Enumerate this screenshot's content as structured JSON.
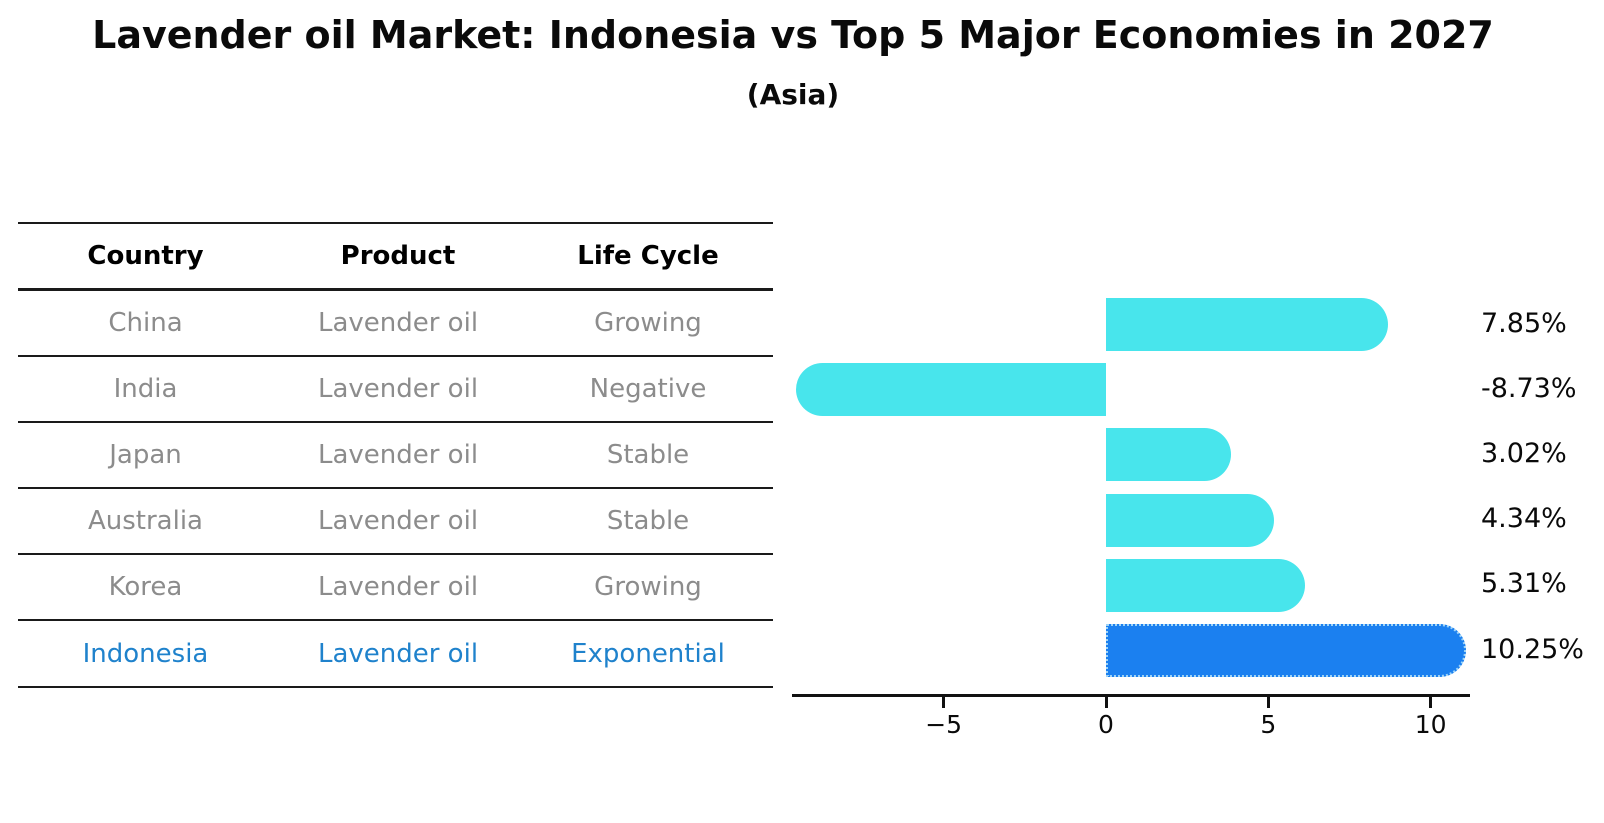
{
  "title": "Lavender oil Market: Indonesia vs Top 5 Major Economies in 2027",
  "subtitle": "(Asia)",
  "table": {
    "headers": [
      "Country",
      "Product",
      "Life Cycle"
    ],
    "rows": [
      {
        "country": "China",
        "product": "Lavender oil",
        "life_cycle": "Growing"
      },
      {
        "country": "India",
        "product": "Lavender oil",
        "life_cycle": "Negative"
      },
      {
        "country": "Japan",
        "product": "Lavender oil",
        "life_cycle": "Stable"
      },
      {
        "country": "Australia",
        "product": "Lavender oil",
        "life_cycle": "Stable"
      },
      {
        "country": "Korea",
        "product": "Lavender oil",
        "life_cycle": "Growing"
      },
      {
        "country": "Indonesia",
        "product": "Lavender oil",
        "life_cycle": "Exponential"
      }
    ],
    "highlight_row": "Indonesia"
  },
  "chart_data": {
    "type": "bar",
    "orientation": "horizontal",
    "categories": [
      "China",
      "India",
      "Japan",
      "Australia",
      "Korea",
      "Indonesia"
    ],
    "values": [
      7.85,
      -8.73,
      3.02,
      4.34,
      5.31,
      10.25
    ],
    "value_labels": [
      "7.85%",
      "-8.73%",
      "3.02%",
      "4.34%",
      "5.31%",
      "10.25%"
    ],
    "xlim": [
      -9.68,
      11.2
    ],
    "x_ticks": [
      -5,
      0,
      5,
      10
    ],
    "x_tick_labels": [
      "−5",
      "0",
      "5",
      "10"
    ],
    "grid": false,
    "legend": false,
    "highlight_category": "Indonesia",
    "bar_color": "#48e5ec",
    "highlight_bar_color": "#1b80f0",
    "highlight_border_color": "#9fd4f7"
  },
  "colors": {
    "row_text": "#8c8c8c",
    "highlight_text": "#1f82cc",
    "header_text": "#0a0a0a",
    "axis_text": "#0a0a0a"
  }
}
